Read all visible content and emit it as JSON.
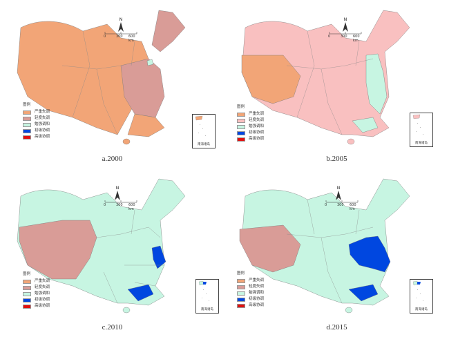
{
  "colors": {
    "severe": "#f2a577",
    "moderate": "#d99c97",
    "barely": "#c7f5e2",
    "primary": "#0047e0",
    "high": "#e01010",
    "pink2005": "#f9c0c0"
  },
  "legend": {
    "titles": [
      "图例",
      "图例",
      "图例",
      "图例"
    ],
    "items": [
      "严重失调",
      "轻度失调",
      "勉强调和",
      "初级协调",
      "高级协调"
    ]
  },
  "scale": {
    "zero": "0",
    "mid": "300",
    "end": "600 km"
  },
  "north_label": "N",
  "inset_label": "南海诸岛",
  "panels": [
    {
      "caption": "a.2000"
    },
    {
      "caption": "b.2005"
    },
    {
      "caption": "c.2010"
    },
    {
      "caption": "d.2015"
    }
  ]
}
